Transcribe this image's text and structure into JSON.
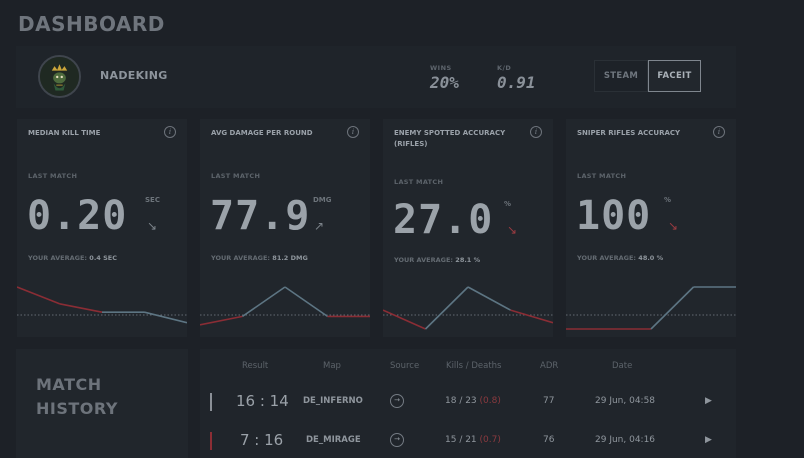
{
  "title": "DASHBOARD",
  "profile": {
    "username": "NADEKING",
    "stats": [
      {
        "label": "WINS",
        "value": "20%"
      },
      {
        "label": "K/D",
        "value": "0.91"
      }
    ],
    "platforms": [
      {
        "label": "STEAM",
        "active": false
      },
      {
        "label": "FACEIT",
        "active": true
      }
    ]
  },
  "cards": [
    {
      "title": "MEDIAN KILL TIME",
      "last_match_label": "LAST MATCH",
      "value": "0.20",
      "unit": "SEC",
      "trend": "↘",
      "trend_color": "#7c838a",
      "avg_label": "YOUR AVERAGE:",
      "avg_value": "0.4 SEC",
      "spark": {
        "points": [
          1.0,
          0.6,
          0.4,
          0.4,
          0.15
        ],
        "segments": [
          "red",
          "red",
          "gray",
          "gray"
        ]
      }
    },
    {
      "title": "AVG DAMAGE PER ROUND",
      "last_match_label": "LAST MATCH",
      "value": "77.9",
      "unit": "DMG",
      "trend": "↗",
      "trend_color": "#7c838a",
      "avg_label": "YOUR AVERAGE:",
      "avg_value": "81.2 DMG",
      "spark": {
        "points": [
          0.1,
          0.3,
          1.0,
          0.3,
          0.3
        ],
        "segments": [
          "red",
          "gray",
          "gray",
          "red"
        ]
      }
    },
    {
      "title": "ENEMY SPOTTED ACCURACY (RIFLES)",
      "last_match_label": "LAST MATCH",
      "value": "27.0",
      "unit": "%",
      "trend": "↘",
      "trend_color": "#9a3b41",
      "avg_label": "YOUR AVERAGE:",
      "avg_value": "28.1 %",
      "spark": {
        "points": [
          0.45,
          0.0,
          1.0,
          0.45,
          0.15
        ],
        "segments": [
          "red",
          "gray",
          "gray",
          "red"
        ]
      }
    },
    {
      "title": "SNIPER RIFLES ACCURACY",
      "last_match_label": "LAST MATCH",
      "value": "100",
      "unit": "%",
      "trend": "↘",
      "trend_color": "#9a3b41",
      "avg_label": "YOUR AVERAGE:",
      "avg_value": "48.0 %",
      "spark": {
        "points": [
          0.0,
          0.0,
          0.0,
          1.0,
          1.0
        ],
        "segments": [
          "red",
          "red",
          "gray",
          "gray"
        ]
      }
    }
  ],
  "match_history": {
    "title_line1": "MATCH",
    "title_line2": "HISTORY",
    "columns": [
      "Result",
      "Map",
      "Source",
      "Kills / Deaths",
      "ADR",
      "Date"
    ],
    "rows": [
      {
        "score": "16 : 14",
        "map": "DE_INFERNO",
        "kills": "18 / 23",
        "kd": "(0.8)",
        "adr": "77",
        "date": "29 Jun, 04:58",
        "result_color": "#8b9097"
      },
      {
        "score": "7 : 16",
        "map": "DE_MIRAGE",
        "kills": "15 / 21",
        "kd": "(0.7)",
        "adr": "76",
        "date": "29 Jun, 04:16",
        "result_color": "#8c2e35"
      }
    ]
  }
}
